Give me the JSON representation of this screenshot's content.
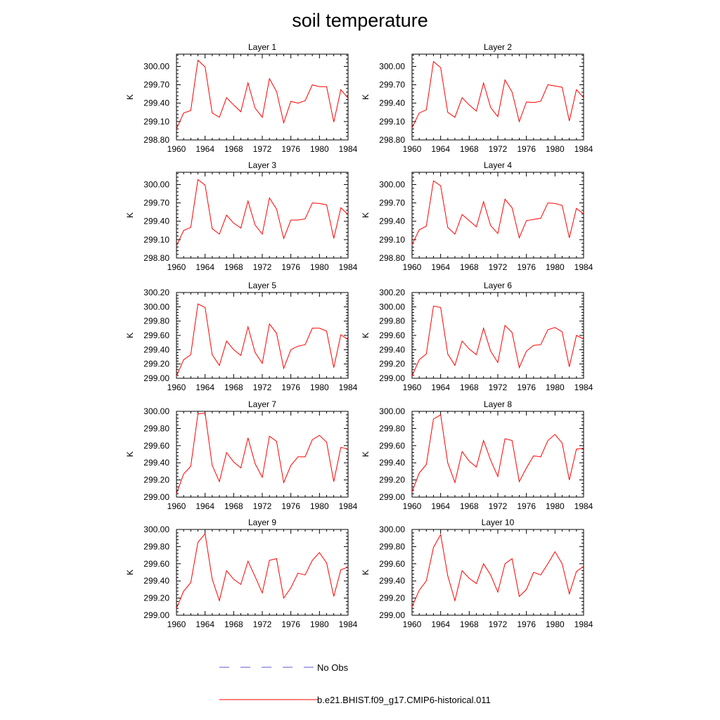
{
  "title": "soil temperature",
  "legend": [
    {
      "label": "No Obs",
      "color": "#5a5acc",
      "dash": true
    },
    {
      "label": "b.e21.BHIST.f09_g17.CMIP6-historical.011",
      "color": "#ff0000",
      "dash": false
    }
  ],
  "chart_data": [
    {
      "type": "line",
      "title": "Layer 1",
      "ylabel": "K",
      "xlim": [
        1960,
        1984
      ],
      "ylim": [
        298.8,
        300.2
      ],
      "yticks": [
        "298.80",
        "299.10",
        "299.40",
        "299.70",
        "300.00"
      ],
      "xticks": [
        "1960",
        "1964",
        "1968",
        "1972",
        "1976",
        "1980",
        "1984"
      ],
      "x": [
        1960,
        1961,
        1962,
        1963,
        1964,
        1965,
        1966,
        1967,
        1968,
        1969,
        1970,
        1971,
        1972,
        1973,
        1974,
        1975,
        1976,
        1977,
        1978,
        1979,
        1980,
        1981,
        1982,
        1983,
        1984
      ],
      "series": [
        {
          "name": "b.e21.BHIST.f09_g17.CMIP6-historical.011",
          "color": "#ff0000",
          "values": [
            298.98,
            299.24,
            299.28,
            300.1,
            299.99,
            299.24,
            299.17,
            299.49,
            299.37,
            299.26,
            299.73,
            299.32,
            299.17,
            299.8,
            299.59,
            299.08,
            299.43,
            299.4,
            299.44,
            299.7,
            299.67,
            299.67,
            299.09,
            299.62,
            299.48
          ]
        }
      ]
    },
    {
      "type": "line",
      "title": "Layer 2",
      "ylabel": "K",
      "xlim": [
        1960,
        1984
      ],
      "ylim": [
        298.8,
        300.2
      ],
      "yticks": [
        "298.80",
        "299.10",
        "299.40",
        "299.70",
        "300.00"
      ],
      "xticks": [
        "1960",
        "1964",
        "1968",
        "1972",
        "1976",
        "1980",
        "1984"
      ],
      "x": [
        1960,
        1961,
        1962,
        1963,
        1964,
        1965,
        1966,
        1967,
        1968,
        1969,
        1970,
        1971,
        1972,
        1973,
        1974,
        1975,
        1976,
        1977,
        1978,
        1979,
        1980,
        1981,
        1982,
        1983,
        1984
      ],
      "series": [
        {
          "name": "b.e21.BHIST.f09_g17.CMIP6-historical.011",
          "color": "#ff0000",
          "values": [
            299.0,
            299.24,
            299.29,
            300.08,
            299.98,
            299.25,
            299.17,
            299.49,
            299.37,
            299.27,
            299.73,
            299.33,
            299.18,
            299.78,
            299.58,
            299.1,
            299.42,
            299.41,
            299.43,
            299.7,
            299.68,
            299.66,
            299.11,
            299.62,
            299.49
          ]
        }
      ]
    },
    {
      "type": "line",
      "title": "Layer 3",
      "ylabel": "K",
      "xlim": [
        1960,
        1984
      ],
      "ylim": [
        298.8,
        300.2
      ],
      "yticks": [
        "298.80",
        "299.10",
        "299.40",
        "299.70",
        "300.00"
      ],
      "xticks": [
        "1960",
        "1964",
        "1968",
        "1972",
        "1976",
        "1980",
        "1984"
      ],
      "x": [
        1960,
        1961,
        1962,
        1963,
        1964,
        1965,
        1966,
        1967,
        1968,
        1969,
        1970,
        1971,
        1972,
        1973,
        1974,
        1975,
        1976,
        1977,
        1978,
        1979,
        1980,
        1981,
        1982,
        1983,
        1984
      ],
      "series": [
        {
          "name": "b.e21.BHIST.f09_g17.CMIP6-historical.011",
          "color": "#ff0000",
          "values": [
            299.0,
            299.25,
            299.3,
            300.08,
            299.99,
            299.28,
            299.19,
            299.5,
            299.37,
            299.29,
            299.73,
            299.34,
            299.19,
            299.78,
            299.6,
            299.12,
            299.42,
            299.42,
            299.44,
            299.7,
            299.69,
            299.67,
            299.12,
            299.62,
            299.51
          ]
        }
      ]
    },
    {
      "type": "line",
      "title": "Layer 4",
      "ylabel": "K",
      "xlim": [
        1960,
        1984
      ],
      "ylim": [
        298.8,
        300.2
      ],
      "yticks": [
        "298.80",
        "299.10",
        "299.40",
        "299.70",
        "300.00"
      ],
      "xticks": [
        "1960",
        "1964",
        "1968",
        "1972",
        "1976",
        "1980",
        "1984"
      ],
      "x": [
        1960,
        1961,
        1962,
        1963,
        1964,
        1965,
        1966,
        1967,
        1968,
        1969,
        1970,
        1971,
        1972,
        1973,
        1974,
        1975,
        1976,
        1977,
        1978,
        1979,
        1980,
        1981,
        1982,
        1983,
        1984
      ],
      "series": [
        {
          "name": "b.e21.BHIST.f09_g17.CMIP6-historical.011",
          "color": "#ff0000",
          "values": [
            299.02,
            299.26,
            299.32,
            300.06,
            299.98,
            299.3,
            299.19,
            299.51,
            299.41,
            299.31,
            299.72,
            299.33,
            299.2,
            299.76,
            299.62,
            299.13,
            299.41,
            299.43,
            299.45,
            299.7,
            299.69,
            299.66,
            299.13,
            299.61,
            299.52
          ]
        }
      ]
    },
    {
      "type": "line",
      "title": "Layer 5",
      "ylabel": "K",
      "xlim": [
        1960,
        1984
      ],
      "ylim": [
        299.0,
        300.2
      ],
      "yticks": [
        "299.00",
        "299.20",
        "299.40",
        "299.60",
        "299.80",
        "300.00",
        "300.20"
      ],
      "xticks": [
        "1960",
        "1964",
        "1968",
        "1972",
        "1976",
        "1980",
        "1984"
      ],
      "x": [
        1960,
        1961,
        1962,
        1963,
        1964,
        1965,
        1966,
        1967,
        1968,
        1969,
        1970,
        1971,
        1972,
        1973,
        1974,
        1975,
        1976,
        1977,
        1978,
        1979,
        1980,
        1981,
        1982,
        1983,
        1984
      ],
      "series": [
        {
          "name": "b.e21.BHIST.f09_g17.CMIP6-historical.011",
          "color": "#ff0000",
          "values": [
            299.03,
            299.26,
            299.33,
            300.04,
            299.99,
            299.33,
            299.18,
            299.52,
            299.4,
            299.32,
            299.72,
            299.36,
            299.21,
            299.76,
            299.63,
            299.14,
            299.4,
            299.45,
            299.47,
            299.7,
            299.7,
            299.66,
            299.15,
            299.61,
            299.54
          ]
        }
      ]
    },
    {
      "type": "line",
      "title": "Layer 6",
      "ylabel": "K",
      "xlim": [
        1960,
        1984
      ],
      "ylim": [
        299.0,
        300.2
      ],
      "yticks": [
        "299.00",
        "299.20",
        "299.40",
        "299.60",
        "299.80",
        "300.00",
        "300.20"
      ],
      "xticks": [
        "1960",
        "1964",
        "1968",
        "1972",
        "1976",
        "1980",
        "1984"
      ],
      "x": [
        1960,
        1961,
        1962,
        1963,
        1964,
        1965,
        1966,
        1967,
        1968,
        1969,
        1970,
        1971,
        1972,
        1973,
        1974,
        1975,
        1976,
        1977,
        1978,
        1979,
        1980,
        1981,
        1982,
        1983,
        1984
      ],
      "series": [
        {
          "name": "b.e21.BHIST.f09_g17.CMIP6-historical.011",
          "color": "#ff0000",
          "values": [
            299.03,
            299.26,
            299.34,
            300.01,
            299.99,
            299.34,
            299.18,
            299.52,
            299.41,
            299.33,
            299.7,
            299.38,
            299.22,
            299.74,
            299.64,
            299.15,
            299.38,
            299.46,
            299.47,
            299.68,
            299.71,
            299.65,
            299.16,
            299.6,
            299.55
          ]
        }
      ]
    },
    {
      "type": "line",
      "title": "Layer 7",
      "ylabel": "K",
      "xlim": [
        1960,
        1984
      ],
      "ylim": [
        299.0,
        300.0
      ],
      "yticks": [
        "299.00",
        "299.20",
        "299.40",
        "299.60",
        "299.80",
        "300.00"
      ],
      "xticks": [
        "1960",
        "1964",
        "1968",
        "1972",
        "1976",
        "1980",
        "1984"
      ],
      "x": [
        1960,
        1961,
        1962,
        1963,
        1964,
        1965,
        1966,
        1967,
        1968,
        1969,
        1970,
        1971,
        1972,
        1973,
        1974,
        1975,
        1976,
        1977,
        1978,
        1979,
        1980,
        1981,
        1982,
        1983,
        1984
      ],
      "series": [
        {
          "name": "b.e21.BHIST.f09_g17.CMIP6-historical.011",
          "color": "#ff0000",
          "values": [
            299.04,
            299.27,
            299.36,
            299.97,
            299.98,
            299.37,
            299.18,
            299.52,
            299.41,
            299.34,
            299.69,
            299.39,
            299.23,
            299.71,
            299.65,
            299.17,
            299.37,
            299.47,
            299.47,
            299.67,
            299.72,
            299.64,
            299.18,
            299.58,
            299.56
          ]
        }
      ]
    },
    {
      "type": "line",
      "title": "Layer 8",
      "ylabel": "K",
      "xlim": [
        1960,
        1984
      ],
      "ylim": [
        299.0,
        300.0
      ],
      "yticks": [
        "299.00",
        "299.20",
        "299.40",
        "299.60",
        "299.80",
        "300.00"
      ],
      "xticks": [
        "1960",
        "1964",
        "1968",
        "1972",
        "1976",
        "1980",
        "1984"
      ],
      "x": [
        1960,
        1961,
        1962,
        1963,
        1964,
        1965,
        1966,
        1967,
        1968,
        1969,
        1970,
        1971,
        1972,
        1973,
        1974,
        1975,
        1976,
        1977,
        1978,
        1979,
        1980,
        1981,
        1982,
        1983,
        1984
      ],
      "series": [
        {
          "name": "b.e21.BHIST.f09_g17.CMIP6-historical.011",
          "color": "#ff0000",
          "values": [
            299.06,
            299.28,
            299.38,
            299.91,
            299.96,
            299.4,
            299.17,
            299.53,
            299.42,
            299.35,
            299.66,
            299.43,
            299.24,
            299.68,
            299.66,
            299.18,
            299.34,
            299.48,
            299.47,
            299.66,
            299.73,
            299.63,
            299.2,
            299.56,
            299.57
          ]
        }
      ]
    },
    {
      "type": "line",
      "title": "Layer 9",
      "ylabel": "K",
      "xlim": [
        1960,
        1984
      ],
      "ylim": [
        299.0,
        300.0
      ],
      "yticks": [
        "299.00",
        "299.20",
        "299.40",
        "299.60",
        "299.80",
        "300.00"
      ],
      "xticks": [
        "1960",
        "1964",
        "1968",
        "1972",
        "1976",
        "1980",
        "1984"
      ],
      "x": [
        1960,
        1961,
        1962,
        1963,
        1964,
        1965,
        1966,
        1967,
        1968,
        1969,
        1970,
        1971,
        1972,
        1973,
        1974,
        1975,
        1976,
        1977,
        1978,
        1979,
        1980,
        1981,
        1982,
        1983,
        1984
      ],
      "series": [
        {
          "name": "b.e21.BHIST.f09_g17.CMIP6-historical.011",
          "color": "#ff0000",
          "values": [
            299.08,
            299.28,
            299.38,
            299.85,
            299.95,
            299.42,
            299.17,
            299.52,
            299.42,
            299.36,
            299.63,
            299.45,
            299.26,
            299.64,
            299.66,
            299.2,
            299.32,
            299.49,
            299.47,
            299.64,
            299.73,
            299.61,
            299.22,
            299.53,
            299.56
          ]
        }
      ]
    },
    {
      "type": "line",
      "title": "Layer 10",
      "ylabel": "K",
      "xlim": [
        1960,
        1984
      ],
      "ylim": [
        299.0,
        300.0
      ],
      "yticks": [
        "299.00",
        "299.20",
        "299.40",
        "299.60",
        "299.80",
        "300.00"
      ],
      "xticks": [
        "1960",
        "1964",
        "1968",
        "1972",
        "1976",
        "1980",
        "1984"
      ],
      "x": [
        1960,
        1961,
        1962,
        1963,
        1964,
        1965,
        1966,
        1967,
        1968,
        1969,
        1970,
        1971,
        1972,
        1973,
        1974,
        1975,
        1976,
        1977,
        1978,
        1979,
        1980,
        1981,
        1982,
        1983,
        1984
      ],
      "series": [
        {
          "name": "b.e21.BHIST.f09_g17.CMIP6-historical.011",
          "color": "#ff0000",
          "values": [
            299.1,
            299.29,
            299.4,
            299.79,
            299.94,
            299.46,
            299.17,
            299.52,
            299.43,
            299.37,
            299.6,
            299.47,
            299.27,
            299.6,
            299.66,
            299.22,
            299.3,
            299.5,
            299.47,
            299.6,
            299.74,
            299.6,
            299.25,
            299.51,
            299.57
          ]
        }
      ]
    }
  ]
}
